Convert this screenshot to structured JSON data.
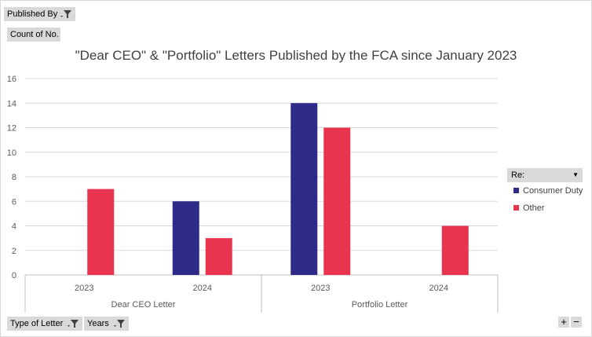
{
  "filters": {
    "published_by": "Published By",
    "count_of": "Count of No.",
    "type_of_letter": "Type of Letter",
    "years": "Years",
    "legend_field": "Re:"
  },
  "zoom": {
    "plus": "+",
    "minus": "−"
  },
  "colors": {
    "consumer_duty": "#2e2a87",
    "other": "#e8344e",
    "grid": "#d9d9d9",
    "axis": "#bfbfbf"
  },
  "chart_data": {
    "type": "bar",
    "title": "\"Dear CEO\" & \"Portfolio\" Letters Published by the FCA since January 2023",
    "xlabel": "",
    "ylabel": "",
    "ylim": [
      0,
      16
    ],
    "yticks": [
      "0",
      "2",
      "4",
      "6",
      "8",
      "10",
      "12",
      "14",
      "16"
    ],
    "groups": [
      {
        "name": "Dear CEO Letter",
        "categories": [
          "2023",
          "2024"
        ]
      },
      {
        "name": "Portfolio Letter",
        "categories": [
          "2023",
          "2024"
        ]
      }
    ],
    "categories": [
      "2023",
      "2024",
      "2023",
      "2024"
    ],
    "series": [
      {
        "name": "Consumer Duty",
        "values": [
          null,
          6,
          14,
          null
        ]
      },
      {
        "name": "Other",
        "values": [
          7,
          3,
          12,
          4
        ]
      }
    ],
    "grid": true,
    "legend": "right"
  }
}
